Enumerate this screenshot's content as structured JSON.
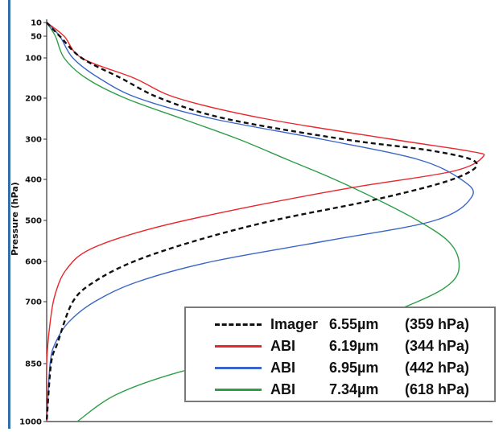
{
  "chart_data": {
    "type": "line",
    "title": "",
    "xlabel": "",
    "ylabel": "Pressure (hPa)",
    "y_scale": "pressure (inverted, near-log)",
    "ylim": [
      1000,
      10
    ],
    "y_ticks": [
      "10",
      "50",
      "100",
      "200",
      "300",
      "400",
      "500",
      "600",
      "700",
      "850",
      "1000"
    ],
    "grid": false,
    "legend_position": "bottom-right",
    "colors": {
      "imager": "#111111",
      "abi_619": "#e8262b",
      "abi_695": "#3b66c8",
      "abi_734": "#2e9e48"
    },
    "series": [
      {
        "name": "Imager",
        "wavelength": "6.55µm",
        "peak": "(359 hPa)",
        "style": "dashed",
        "color": "#111111",
        "points": [
          [
            0,
            10
          ],
          [
            0.03,
            50
          ],
          [
            0.08,
            100
          ],
          [
            0.17,
            150
          ],
          [
            0.26,
            200
          ],
          [
            0.41,
            250
          ],
          [
            0.68,
            300
          ],
          [
            0.89,
            330
          ],
          [
            0.985,
            359
          ],
          [
            0.93,
            400
          ],
          [
            0.75,
            450
          ],
          [
            0.52,
            500
          ],
          [
            0.34,
            550
          ],
          [
            0.2,
            600
          ],
          [
            0.11,
            650
          ],
          [
            0.06,
            700
          ],
          [
            0.025,
            800
          ],
          [
            0.01,
            850
          ],
          [
            0,
            1000
          ]
        ]
      },
      {
        "name": "ABI",
        "wavelength": "6.19µm",
        "peak": "(344 hPa)",
        "style": "solid",
        "color": "#e8262b",
        "points": [
          [
            0,
            10
          ],
          [
            0.04,
            50
          ],
          [
            0.08,
            100
          ],
          [
            0.2,
            150
          ],
          [
            0.3,
            200
          ],
          [
            0.5,
            250
          ],
          [
            0.79,
            300
          ],
          [
            0.97,
            330
          ],
          [
            1.0,
            344
          ],
          [
            0.93,
            380
          ],
          [
            0.7,
            420
          ],
          [
            0.45,
            470
          ],
          [
            0.24,
            520
          ],
          [
            0.1,
            570
          ],
          [
            0.045,
            620
          ],
          [
            0.02,
            680
          ],
          [
            0.008,
            750
          ],
          [
            0,
            850
          ],
          [
            0,
            1000
          ]
        ]
      },
      {
        "name": "ABI",
        "wavelength": "6.95µm",
        "peak": "(442 hPa)",
        "style": "solid",
        "color": "#3b66c8",
        "points": [
          [
            0,
            10
          ],
          [
            0.03,
            50
          ],
          [
            0.06,
            100
          ],
          [
            0.12,
            150
          ],
          [
            0.21,
            200
          ],
          [
            0.38,
            250
          ],
          [
            0.63,
            300
          ],
          [
            0.85,
            350
          ],
          [
            0.95,
            400
          ],
          [
            0.975,
            442
          ],
          [
            0.89,
            500
          ],
          [
            0.64,
            550
          ],
          [
            0.38,
            600
          ],
          [
            0.21,
            650
          ],
          [
            0.11,
            700
          ],
          [
            0.05,
            750
          ],
          [
            0.02,
            800
          ],
          [
            0.008,
            850
          ],
          [
            0,
            1000
          ]
        ]
      },
      {
        "name": "ABI",
        "wavelength": "7.34µm",
        "peak": "(618 hPa)",
        "style": "solid",
        "color": "#2e9e48",
        "points": [
          [
            0,
            10
          ],
          [
            0.02,
            50
          ],
          [
            0.04,
            100
          ],
          [
            0.09,
            150
          ],
          [
            0.18,
            200
          ],
          [
            0.31,
            250
          ],
          [
            0.44,
            300
          ],
          [
            0.55,
            350
          ],
          [
            0.66,
            400
          ],
          [
            0.76,
            450
          ],
          [
            0.85,
            500
          ],
          [
            0.92,
            550
          ],
          [
            0.945,
            600
          ],
          [
            0.93,
            650
          ],
          [
            0.85,
            700
          ],
          [
            0.65,
            780
          ],
          [
            0.48,
            830
          ],
          [
            0.31,
            870
          ],
          [
            0.16,
            930
          ],
          [
            0.07,
            1000
          ]
        ]
      }
    ]
  }
}
